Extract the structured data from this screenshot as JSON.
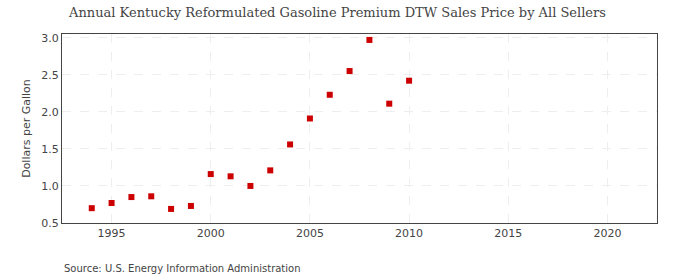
{
  "chart_data": {
    "type": "scatter",
    "title": "Annual Kentucky Reformulated Gasoline Premium DTW Sales Price by All Sellers",
    "ylabel": "Dollars per Gallon",
    "source": "Source: U.S. Energy Information Administration",
    "x": [
      1994,
      1995,
      1996,
      1997,
      1998,
      1999,
      2000,
      2001,
      2002,
      2003,
      2004,
      2005,
      2006,
      2007,
      2008,
      2009,
      2010
    ],
    "values": [
      0.7,
      0.77,
      0.85,
      0.86,
      0.69,
      0.73,
      1.16,
      1.13,
      1.0,
      1.21,
      1.56,
      1.91,
      2.23,
      2.55,
      2.97,
      2.11,
      2.42
    ],
    "color": "#cc0000",
    "marker": "square",
    "xlim": [
      1992.5,
      2022.5
    ],
    "ylim": [
      0.5,
      3.05
    ],
    "xticks": [
      1995,
      2000,
      2005,
      2010,
      2015,
      2020
    ],
    "yticks": [
      0.5,
      {
        "value": 1.0,
        "label": "1.0"
      },
      1.5,
      {
        "value": 2.0,
        "label": "2.0"
      },
      2.5,
      {
        "value": 3.0,
        "label": "3.0"
      }
    ],
    "grid": true
  }
}
